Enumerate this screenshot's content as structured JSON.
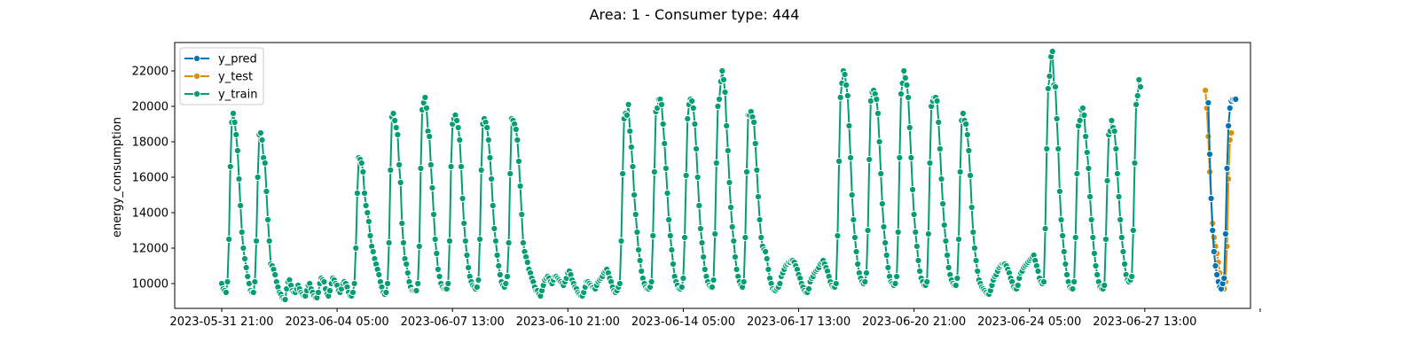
{
  "chart_data": {
    "type": "line",
    "title": "Area: 1 - Consumer type: 444",
    "xlabel": "",
    "ylabel": "energy_consumption",
    "x_unit": "hours",
    "x_start": "2023-05-31 21:00",
    "x_range": [
      0,
      768
    ],
    "ylim": [
      8600,
      23600
    ],
    "yticks": [
      10000,
      12000,
      14000,
      16000,
      18000,
      20000,
      22000
    ],
    "xticks": [
      {
        "x": 0,
        "label": "2023-05-31 21:00"
      },
      {
        "x": 80,
        "label": "2023-06-04 05:00"
      },
      {
        "x": 160,
        "label": "2023-06-07 13:00"
      },
      {
        "x": 240,
        "label": "2023-06-10 21:00"
      },
      {
        "x": 320,
        "label": "2023-06-14 05:00"
      },
      {
        "x": 400,
        "label": "2023-06-17 13:00"
      },
      {
        "x": 480,
        "label": "2023-06-20 21:00"
      },
      {
        "x": 560,
        "label": "2023-06-24 05:00"
      },
      {
        "x": 640,
        "label": "2023-06-27 13:00"
      },
      {
        "x": 720,
        "label": ""
      }
    ],
    "legend": {
      "placement": "top-left"
    },
    "series": [
      {
        "name": "y_pred",
        "color": "#0173b2",
        "x": [
          684,
          685,
          686,
          687,
          688,
          689,
          690,
          691,
          692,
          693,
          694,
          695,
          696,
          697,
          698,
          699,
          700,
          701,
          702,
          703
        ],
        "values": [
          20200,
          17300,
          14800,
          13000,
          11800,
          11000,
          10500,
          10100,
          9800,
          9700,
          10000,
          10300,
          12800,
          16500,
          18900,
          19900,
          20300,
          20400,
          20400,
          20400
        ]
      },
      {
        "name": "y_test",
        "color": "#de8f05",
        "x": [
          682,
          683,
          684,
          685,
          686,
          687,
          688,
          689,
          690,
          691,
          692,
          693,
          694,
          695,
          696,
          697,
          698,
          699,
          700
        ],
        "values": [
          20900,
          19900,
          18300,
          16300,
          14800,
          13400,
          12600,
          12100,
          11700,
          11200,
          10600,
          10200,
          9900,
          9700,
          10100,
          12100,
          15900,
          18100,
          18500
        ]
      },
      {
        "name": "y_train",
        "color": "#029e73",
        "x_start": 0,
        "values": [
          10000,
          9700,
          9600,
          9500,
          10100,
          12500,
          16600,
          19100,
          19600,
          19100,
          18400,
          17500,
          15900,
          14400,
          12900,
          12000,
          11400,
          10900,
          10400,
          10000,
          9600,
          9500,
          9500,
          10100,
          12400,
          16000,
          18400,
          18500,
          18100,
          17100,
          16800,
          15200,
          13600,
          12400,
          11100,
          11000,
          10800,
          10500,
          10100,
          9800,
          9500,
          9400,
          9200,
          9100,
          9100,
          9700,
          10100,
          10200,
          9900,
          9600,
          9500,
          9500,
          9700,
          9900,
          9700,
          9500,
          9400,
          9300,
          9300,
          9600,
          9900,
          10000,
          9700,
          9500,
          9300,
          9200,
          9200,
          9500,
          10000,
          10300,
          10200,
          10100,
          9700,
          9400,
          9300,
          9600,
          10000,
          10300,
          10200,
          10000,
          9900,
          9600,
          9500,
          9700,
          10000,
          10100,
          10000,
          9800,
          9500,
          9300,
          9300,
          9500,
          10000,
          12000,
          15100,
          17100,
          17000,
          16800,
          16300,
          15100,
          14400,
          14000,
          13500,
          12700,
          12100,
          11800,
          11400,
          11100,
          10800,
          10500,
          10100,
          9800,
          9500,
          9400,
          9500,
          10000,
          12300,
          16400,
          19400,
          19600,
          19200,
          18800,
          18400,
          16700,
          15700,
          13400,
          12300,
          11400,
          11100,
          10600,
          10100,
          9800,
          9600,
          9600,
          9600,
          9600,
          10000,
          12100,
          16500,
          19800,
          20200,
          20500,
          19900,
          18600,
          18300,
          16700,
          15400,
          13900,
          12500,
          11700,
          10800,
          10400,
          10000,
          9800,
          9700,
          9700,
          9700,
          10000,
          12400,
          16600,
          19000,
          19300,
          19500,
          19200,
          18800,
          18100,
          16600,
          14800,
          13400,
          12400,
          11600,
          10900,
          10400,
          10100,
          9900,
          9800,
          9700,
          9800,
          10200,
          12500,
          16400,
          19000,
          19300,
          19100,
          18800,
          18100,
          17100,
          15900,
          14400,
          13100,
          12400,
          11600,
          11000,
          10500,
          10100,
          9900,
          9800,
          10000,
          10400,
          12300,
          16200,
          19300,
          19200,
          19000,
          18700,
          18100,
          16900,
          15500,
          13900,
          12300,
          11800,
          11500,
          11200,
          10800,
          10600,
          10300,
          10100,
          9800,
          9600,
          9600,
          9400,
          9300,
          9600,
          9900,
          10200,
          10300,
          10400,
          10300,
          10100,
          10000,
          10200,
          10400,
          10400,
          10300,
          10200,
          10100,
          10000,
          9900,
          10100,
          10300,
          10600,
          10700,
          10500,
          10200,
          10000,
          9800,
          9700,
          9500,
          9400,
          9300,
          9300,
          9500,
          9800,
          10100,
          10100,
          10000,
          9900,
          9800,
          9800,
          9700,
          9900,
          10100,
          10200,
          10300,
          10400,
          10600,
          10700,
          10800,
          10600,
          10300,
          10100,
          9800,
          9600,
          9500,
          9600,
          9800,
          10000,
          12400,
          16200,
          19300,
          19600,
          19500,
          20100,
          18600,
          17700,
          16600,
          15000,
          13900,
          12900,
          11900,
          11300,
          10700,
          10300,
          10000,
          9800,
          9700,
          9700,
          9800,
          10100,
          12700,
          16300,
          19700,
          19900,
          20400,
          20400,
          20100,
          19000,
          17900,
          16500,
          15100,
          13600,
          12700,
          11900,
          11100,
          10400,
          10100,
          9900,
          9700,
          9700,
          9800,
          10300,
          12600,
          16100,
          19300,
          20100,
          20400,
          20300,
          19900,
          19000,
          17600,
          16000,
          14400,
          13100,
          12300,
          11500,
          10800,
          10400,
          10100,
          9900,
          9800,
          9800,
          10200,
          12800,
          16800,
          20000,
          20400,
          21400,
          22000,
          21500,
          20800,
          18900,
          17500,
          15700,
          14300,
          13200,
          12400,
          11500,
          10800,
          10400,
          10100,
          9900,
          9800,
          10100,
          12600,
          16300,
          19500,
          19500,
          19700,
          19400,
          19100,
          17900,
          16400,
          14900,
          13600,
          12600,
          12100,
          11900,
          11800,
          11400,
          10800,
          10300,
          10000,
          9700,
          9600,
          9600,
          9700,
          9800,
          10000,
          10400,
          10600,
          10800,
          11000,
          11100,
          11200,
          11200,
          11300,
          11300,
          11200,
          11000,
          10800,
          10500,
          10300,
          10000,
          9800,
          9600,
          9500,
          9500,
          9700,
          10100,
          10300,
          10400,
          10600,
          10700,
          10800,
          10900,
          11100,
          11200,
          11300,
          11100,
          10900,
          10700,
          10400,
          10100,
          9900,
          9800,
          9800,
          10000,
          12700,
          16900,
          20500,
          21300,
          22000,
          21800,
          21200,
          20600,
          18900,
          17100,
          15000,
          13600,
          12600,
          11800,
          11100,
          10600,
          10300,
          10100,
          10000,
          10100,
          10600,
          13000,
          17000,
          20300,
          20800,
          20900,
          20700,
          20400,
          19600,
          18000,
          16200,
          14500,
          13200,
          12300,
          11600,
          10900,
          10400,
          10100,
          10000,
          9900,
          10000,
          10400,
          12900,
          17100,
          20700,
          21300,
          22000,
          21600,
          21200,
          20500,
          18800,
          17100,
          15300,
          13900,
          12900,
          12100,
          11300,
          10700,
          10300,
          10100,
          9900,
          9900,
          10100,
          12800,
          16800,
          20000,
          20300,
          20500,
          20500,
          20300,
          19100,
          17600,
          15900,
          14500,
          13300,
          12400,
          11600,
          10900,
          10500,
          10200,
          10000,
          9900,
          9900,
          10300,
          12500,
          16300,
          19200,
          19600,
          19200,
          19000,
          18400,
          17500,
          16100,
          14300,
          12900,
          12000,
          11300,
          10700,
          10200,
          10000,
          9800,
          9700,
          9600,
          9500,
          9400,
          9400,
          9600,
          9900,
          10200,
          10400,
          10500,
          10700,
          10900,
          11000,
          11100,
          11100,
          11100,
          11000,
          10800,
          10600,
          10300,
          10100,
          9800,
          9700,
          9700,
          9900,
          10300,
          10600,
          10700,
          10900,
          11000,
          11100,
          11200,
          11300,
          11400,
          11500,
          11600,
          11300,
          11000,
          10700,
          10300,
          10100,
          10000,
          10100,
          13100,
          17600,
          21000,
          21700,
          22800,
          23100,
          21200,
          21100,
          19300,
          17600,
          15200,
          13600,
          12700,
          11800,
          11100,
          10500,
          10100,
          9800,
          9700,
          9700,
          10100,
          12600,
          16200,
          18900,
          19200,
          19800,
          19900,
          19500,
          18300,
          17400,
          16500,
          14900,
          13600,
          12600,
          11700,
          11000,
          10500,
          10100,
          9800,
          9700,
          9700,
          9900,
          12500,
          15800,
          18400,
          18600,
          19200,
          18800,
          18600,
          17600,
          16200,
          14900,
          13600,
          12600,
          11800,
          11100,
          10500,
          10200,
          10100,
          10200,
          10400,
          13000,
          16800,
          20100,
          20600,
          21500,
          21100
        ]
      }
    ]
  }
}
